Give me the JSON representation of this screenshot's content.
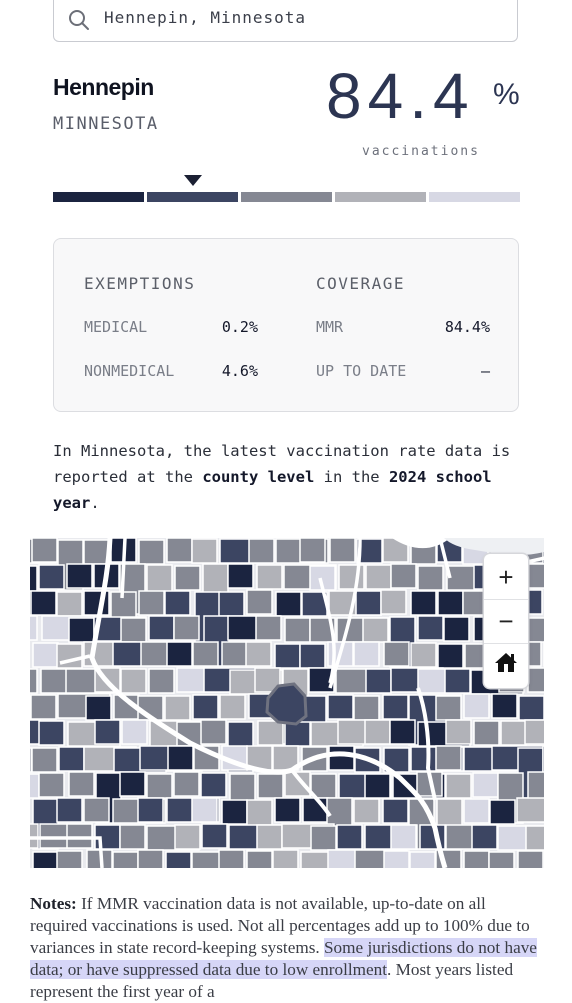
{
  "search": {
    "value": "Hennepin, Minnesota",
    "icon": "search-icon"
  },
  "location": {
    "county": "Hennepin",
    "state": "MINNESOTA"
  },
  "rate": {
    "value": "84.4",
    "unit": "%",
    "label": "vaccinations"
  },
  "scale": {
    "colors": [
      "#1b2440",
      "#3c4562",
      "#858893",
      "#b1b2b8",
      "#d7d8e4"
    ],
    "selected_bin": 1
  },
  "stats": {
    "exemptions": {
      "title": "EXEMPTIONS",
      "medical_label": "MEDICAL",
      "medical_value": "0.2%",
      "nonmedical_label": "NONMEDICAL",
      "nonmedical_value": "4.6%"
    },
    "coverage": {
      "title": "COVERAGE",
      "mmr_label": "MMR",
      "mmr_value": "84.4%",
      "utd_label": "UP TO DATE",
      "utd_value": "–"
    }
  },
  "description": {
    "p1": "In Minnesota, the latest vaccination rate data is reported at the ",
    "b1": "county level",
    "p2": " in the ",
    "b2": "2024 school year",
    "p3": "."
  },
  "map": {
    "zoom_in": "+",
    "zoom_out": "−",
    "home_icon": "home-icon",
    "highlighted_county": "Hennepin"
  },
  "notes": {
    "label": "Notes:",
    "t1": " If MMR vaccination data is not available, up-to-date on all required vaccinations is used. Not all percentages add up to 100% due to variances in state record-keeping systems. ",
    "highlight": "Some jurisdictions do not have data; or have suppressed data due to low enrollment",
    "t2": ". Most years listed represent the first year of a"
  }
}
